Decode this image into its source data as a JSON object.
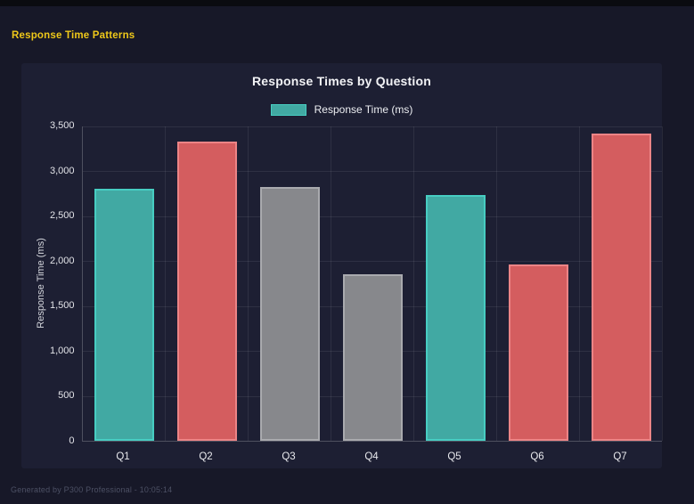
{
  "page": {
    "heading": "Response Time Patterns",
    "footer": "Generated by P300 Professional - 10:05:14"
  },
  "colors": {
    "accent_yellow": "#efc819",
    "page_bg": "#171828",
    "panel_bg": "#1d1f33",
    "topbar_bg": "#0a0b10",
    "teal_fill": "#41a9a3",
    "teal_border": "#47cdc2",
    "red_fill": "#d45d5f",
    "red_border": "#ec8486",
    "gray_fill": "#87888c",
    "gray_border": "#a9aaae"
  },
  "chart_data": {
    "type": "bar",
    "title": "Response Times by Question",
    "legend_label": "Response Time (ms)",
    "legend_position": "top",
    "categories": [
      "Q1",
      "Q2",
      "Q3",
      "Q4",
      "Q5",
      "Q6",
      "Q7"
    ],
    "series": [
      {
        "name": "Response Time (ms)",
        "values": [
          2795,
          3320,
          2810,
          1840,
          2725,
          1950,
          3410
        ]
      }
    ],
    "bar_colors": [
      "teal",
      "red",
      "gray",
      "gray",
      "teal",
      "red",
      "red"
    ],
    "xlabel": "",
    "ylabel": "Response Time (ms)",
    "ylim": [
      0,
      3500
    ],
    "ytick_step": 500,
    "grid": true
  }
}
